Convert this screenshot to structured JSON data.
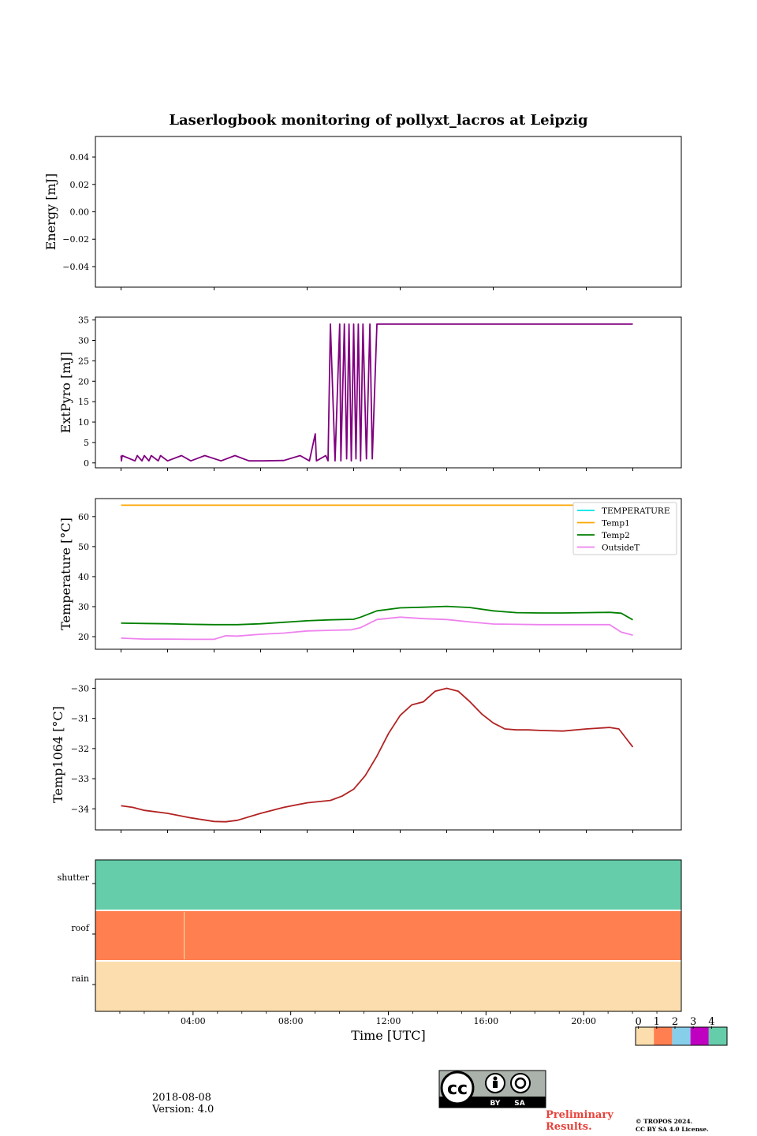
{
  "title": "Laserlogbook monitoring of pollyxt_lacros at Leipzig",
  "date": "2018-08-08",
  "version": "Version: 4.0",
  "preliminary": [
    "Preliminary",
    "Results."
  ],
  "copyright": [
    "© TROPOS 2024.",
    "CC BY SA 4.0 License."
  ],
  "license_badge": {
    "by": "BY",
    "sa": "SA",
    "cc": "cc"
  },
  "chart_data": [
    {
      "type": "line",
      "ylabel": "Energy [mJ]",
      "ylim": [
        -0.055,
        0.055
      ],
      "yticks": [
        0.04,
        0.02,
        0.0,
        -0.02,
        -0.04
      ],
      "ytick_labels": [
        "0.04",
        "0.02",
        "0.00",
        "−0.02",
        "−0.04"
      ],
      "series": []
    },
    {
      "type": "line",
      "ylabel": "ExtPyro [mJ]",
      "ylim": [
        -1.2,
        35.7
      ],
      "yticks": [
        0,
        5,
        10,
        15,
        20,
        25,
        30,
        35
      ],
      "ytick_labels": [
        "0",
        "5",
        "10",
        "15",
        "20",
        "25",
        "30",
        "35"
      ],
      "color": "#800080",
      "x_hours": [
        0.0,
        0.02,
        0.05,
        0.6,
        0.7,
        0.9,
        1.0,
        1.2,
        1.3,
        1.6,
        1.7,
        2.0,
        2.6,
        3.0,
        3.6,
        4.3,
        4.9,
        5.5,
        6.1,
        7.0,
        7.7,
        8.1,
        8.35,
        8.4,
        8.8,
        8.9,
        9.0,
        9.2,
        9.4,
        9.45,
        9.6,
        9.7,
        9.8,
        9.9,
        10.0,
        10.1,
        10.2,
        10.3,
        10.4,
        10.55,
        10.7,
        10.8,
        11.0,
        12.0,
        16.0,
        20.0,
        22.0
      ],
      "values": [
        1.8,
        0.5,
        1.8,
        0.5,
        1.8,
        0.5,
        1.8,
        0.5,
        1.8,
        0.5,
        1.8,
        0.5,
        1.8,
        0.5,
        1.8,
        0.5,
        1.8,
        0.5,
        0.5,
        0.6,
        1.8,
        0.5,
        7.1,
        0.5,
        1.8,
        0.5,
        34.0,
        0.5,
        34.0,
        0.5,
        34.0,
        1.0,
        34.0,
        0.5,
        34.0,
        1.0,
        34.0,
        0.5,
        34.0,
        1.0,
        34.0,
        1.0,
        34.0,
        34.0,
        34.0,
        34.0,
        34.0
      ]
    },
    {
      "type": "line",
      "ylabel": "Temperature [°C]",
      "ylim": [
        15.8,
        66.0
      ],
      "yticks": [
        20,
        30,
        40,
        50,
        60
      ],
      "ytick_labels": [
        "20",
        "30",
        "40",
        "50",
        "60"
      ],
      "legend": "top-right",
      "series": [
        {
          "name": "TEMPERATURE",
          "color": "#00e5ee",
          "x_hours": [],
          "values": []
        },
        {
          "name": "Temp1",
          "color": "#ffa500",
          "x_hours": [
            0,
            22
          ],
          "values": [
            63.8,
            63.8
          ]
        },
        {
          "name": "Temp2",
          "color": "#008000",
          "x_hours": [
            0,
            1,
            2,
            3,
            4,
            5,
            6,
            7,
            8,
            9,
            10,
            10.3,
            11,
            12,
            13,
            14,
            15,
            16,
            17,
            18,
            19,
            20,
            21,
            21.5,
            22
          ],
          "values": [
            24.5,
            24.4,
            24.3,
            24.1,
            24.0,
            24.0,
            24.3,
            24.8,
            25.3,
            25.6,
            25.8,
            26.5,
            28.6,
            29.6,
            29.8,
            30.1,
            29.7,
            28.6,
            28.0,
            27.9,
            27.9,
            28.0,
            28.1,
            27.8,
            25.6
          ]
        },
        {
          "name": "OutsideT",
          "color": "#ee82ee",
          "x_hours": [
            0,
            1,
            2,
            3,
            4,
            4.5,
            5,
            6,
            7,
            8,
            9,
            9.9,
            10.3,
            11,
            12,
            13,
            14,
            15,
            16,
            17,
            18,
            19,
            20,
            21,
            21.5,
            22
          ],
          "values": [
            19.5,
            19.2,
            19.2,
            19.1,
            19.1,
            20.3,
            20.2,
            20.8,
            21.2,
            21.9,
            22.1,
            22.3,
            23.0,
            25.7,
            26.5,
            26.0,
            25.7,
            24.9,
            24.2,
            24.1,
            24.0,
            24.0,
            24.0,
            24.0,
            21.5,
            20.5
          ]
        }
      ]
    },
    {
      "type": "line",
      "ylabel": "Temp1064 [°C]",
      "ylim": [
        -34.7,
        -29.7
      ],
      "yticks": [
        -30,
        -31,
        -32,
        -33,
        -34
      ],
      "ytick_labels": [
        "−30",
        "−31",
        "−32",
        "−33",
        "−34"
      ],
      "color": "#b22222",
      "x_hours": [
        0,
        0.5,
        1,
        2,
        3,
        4,
        4.5,
        5,
        6,
        7,
        8,
        9,
        9.5,
        10,
        10.5,
        11,
        11.5,
        12,
        12.5,
        13,
        13.5,
        14,
        14.5,
        15,
        15.5,
        16,
        16.5,
        17,
        17.5,
        18,
        19,
        20,
        21,
        21.4,
        21.7,
        22
      ],
      "values": [
        -33.9,
        -33.95,
        -34.05,
        -34.15,
        -34.3,
        -34.42,
        -34.43,
        -34.38,
        -34.15,
        -33.95,
        -33.8,
        -33.72,
        -33.58,
        -33.35,
        -32.9,
        -32.25,
        -31.5,
        -30.9,
        -30.55,
        -30.45,
        -30.1,
        -30.0,
        -30.1,
        -30.45,
        -30.85,
        -31.15,
        -31.35,
        -31.38,
        -31.38,
        -31.4,
        -31.42,
        -31.35,
        -31.3,
        -31.35,
        -31.65,
        -31.95
      ]
    },
    {
      "type": "heatmap",
      "xlabel": "Time [UTC]",
      "x_tick_labels": [
        "04:00",
        "08:00",
        "12:00",
        "16:00",
        "20:00"
      ],
      "x_tick_hours": [
        4,
        8,
        12,
        16,
        20
      ],
      "rows": [
        {
          "label": "shutter",
          "value": 4,
          "roof_gap_hours": null
        },
        {
          "label": "roof",
          "value": 1,
          "gap_at_hours": 2.75
        },
        {
          "label": "rain",
          "value": 0,
          "roof_gap_hours": null
        }
      ],
      "colorbar": {
        "labels": [
          "0",
          "1",
          "2",
          "3",
          "4"
        ],
        "colors": [
          "#fcdeae",
          "#ff7f50",
          "#87ceeb",
          "#c000c0",
          "#66cdaa"
        ]
      }
    }
  ]
}
